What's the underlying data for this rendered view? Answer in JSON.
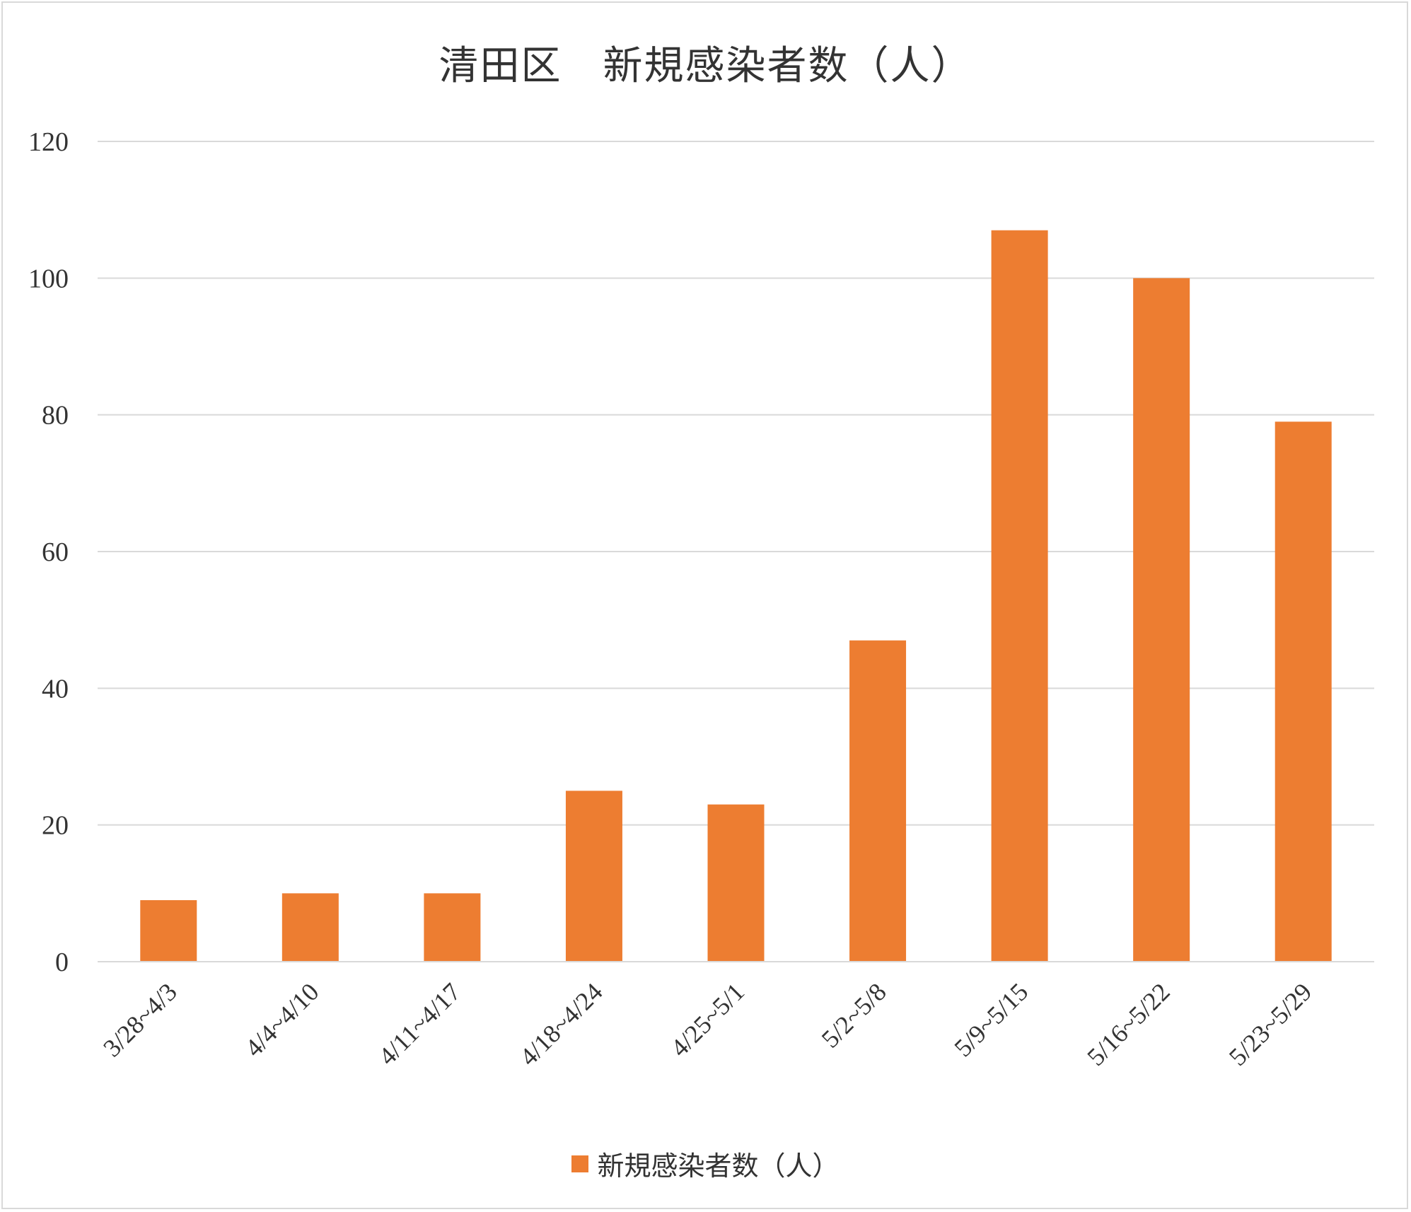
{
  "chart_data": {
    "type": "bar",
    "title": "清田区　新規感染者数（人）",
    "categories": [
      "3/28~4/3",
      "4/4~4/10",
      "4/11~4/17",
      "4/18~4/24",
      "4/25~5/1",
      "5/2~5/8",
      "5/9~5/15",
      "5/16~5/22",
      "5/23~5/29"
    ],
    "series": [
      {
        "name": "新規感染者数（人）",
        "values": [
          9,
          10,
          10,
          25,
          23,
          47,
          107,
          100,
          79
        ],
        "color": "#ed7d31"
      }
    ],
    "yticks": [
      0,
      20,
      40,
      60,
      80,
      100,
      120
    ],
    "ylim": [
      0,
      120
    ],
    "xlabel": "",
    "ylabel": "",
    "grid": true,
    "legend": "bottom"
  }
}
